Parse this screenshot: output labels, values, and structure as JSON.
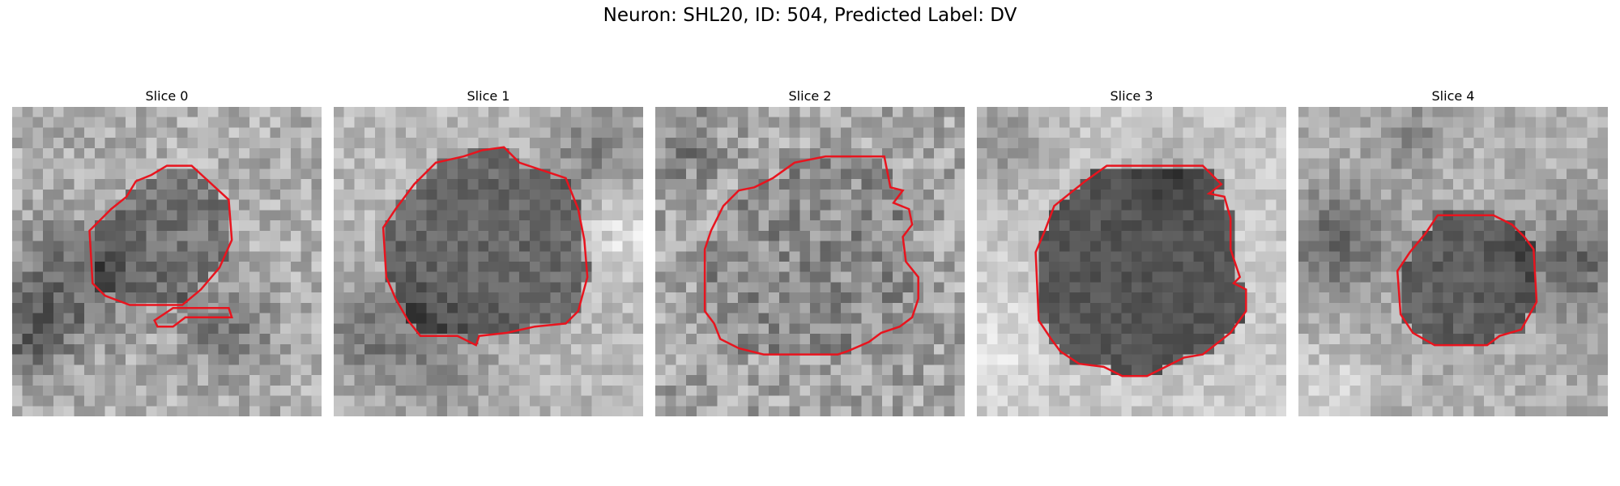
{
  "figure": {
    "title": "Neuron: SHL20, ID: 504, Predicted Label: DV"
  },
  "contour_color": "#e8141e",
  "panels": [
    {
      "title": "Slice 0",
      "tone": "speckled gray with dark patch lower-left",
      "contours": [
        [
          [
            0.5,
            0.19
          ],
          [
            0.58,
            0.19
          ],
          [
            0.7,
            0.3
          ],
          [
            0.71,
            0.43
          ],
          [
            0.67,
            0.52
          ],
          [
            0.61,
            0.59
          ],
          [
            0.55,
            0.64
          ],
          [
            0.38,
            0.64
          ],
          [
            0.3,
            0.61
          ],
          [
            0.26,
            0.57
          ],
          [
            0.25,
            0.4
          ],
          [
            0.32,
            0.33
          ],
          [
            0.37,
            0.29
          ],
          [
            0.4,
            0.24
          ],
          [
            0.45,
            0.22
          ]
        ],
        [
          [
            0.52,
            0.65
          ],
          [
            0.7,
            0.65
          ],
          [
            0.71,
            0.68
          ],
          [
            0.56,
            0.68
          ],
          [
            0.52,
            0.71
          ],
          [
            0.47,
            0.71
          ],
          [
            0.46,
            0.69
          ]
        ]
      ]
    },
    {
      "title": "Slice 1",
      "tone": "large darker soma centered",
      "contours": [
        [
          [
            0.48,
            0.14
          ],
          [
            0.55,
            0.13
          ],
          [
            0.6,
            0.18
          ],
          [
            0.75,
            0.23
          ],
          [
            0.79,
            0.33
          ],
          [
            0.81,
            0.43
          ],
          [
            0.82,
            0.55
          ],
          [
            0.79,
            0.66
          ],
          [
            0.75,
            0.7
          ],
          [
            0.65,
            0.71
          ],
          [
            0.56,
            0.73
          ],
          [
            0.47,
            0.74
          ],
          [
            0.46,
            0.77
          ],
          [
            0.4,
            0.74
          ],
          [
            0.28,
            0.74
          ],
          [
            0.24,
            0.69
          ],
          [
            0.2,
            0.62
          ],
          [
            0.17,
            0.55
          ],
          [
            0.16,
            0.39
          ],
          [
            0.2,
            0.33
          ],
          [
            0.26,
            0.25
          ],
          [
            0.33,
            0.18
          ],
          [
            0.42,
            0.16
          ]
        ]
      ]
    },
    {
      "title": "Slice 2",
      "tone": "noisy textured soma",
      "contours": [
        [
          [
            0.55,
            0.16
          ],
          [
            0.74,
            0.16
          ],
          [
            0.76,
            0.26
          ],
          [
            0.8,
            0.27
          ],
          [
            0.77,
            0.31
          ],
          [
            0.82,
            0.33
          ],
          [
            0.83,
            0.38
          ],
          [
            0.8,
            0.42
          ],
          [
            0.81,
            0.5
          ],
          [
            0.85,
            0.55
          ],
          [
            0.85,
            0.62
          ],
          [
            0.83,
            0.68
          ],
          [
            0.79,
            0.71
          ],
          [
            0.73,
            0.73
          ],
          [
            0.69,
            0.76
          ],
          [
            0.62,
            0.79
          ],
          [
            0.59,
            0.8
          ],
          [
            0.35,
            0.8
          ],
          [
            0.27,
            0.78
          ],
          [
            0.21,
            0.75
          ],
          [
            0.19,
            0.7
          ],
          [
            0.16,
            0.66
          ],
          [
            0.16,
            0.46
          ],
          [
            0.18,
            0.4
          ],
          [
            0.22,
            0.32
          ],
          [
            0.27,
            0.27
          ],
          [
            0.32,
            0.26
          ],
          [
            0.38,
            0.23
          ],
          [
            0.45,
            0.18
          ]
        ]
      ]
    },
    {
      "title": "Slice 3",
      "tone": "smooth dark soma on light background",
      "contours": [
        [
          [
            0.42,
            0.19
          ],
          [
            0.73,
            0.19
          ],
          [
            0.79,
            0.25
          ],
          [
            0.75,
            0.28
          ],
          [
            0.8,
            0.29
          ],
          [
            0.82,
            0.36
          ],
          [
            0.82,
            0.46
          ],
          [
            0.85,
            0.55
          ],
          [
            0.83,
            0.57
          ],
          [
            0.87,
            0.59
          ],
          [
            0.87,
            0.66
          ],
          [
            0.82,
            0.73
          ],
          [
            0.73,
            0.8
          ],
          [
            0.67,
            0.81
          ],
          [
            0.61,
            0.84
          ],
          [
            0.55,
            0.87
          ],
          [
            0.47,
            0.87
          ],
          [
            0.41,
            0.84
          ],
          [
            0.33,
            0.83
          ],
          [
            0.27,
            0.79
          ],
          [
            0.24,
            0.75
          ],
          [
            0.2,
            0.69
          ],
          [
            0.19,
            0.47
          ],
          [
            0.22,
            0.4
          ],
          [
            0.25,
            0.32
          ],
          [
            0.35,
            0.24
          ]
        ]
      ]
    },
    {
      "title": "Slice 4",
      "tone": "small soma in dark band",
      "contours": [
        [
          [
            0.45,
            0.35
          ],
          [
            0.63,
            0.35
          ],
          [
            0.69,
            0.38
          ],
          [
            0.73,
            0.42
          ],
          [
            0.76,
            0.46
          ],
          [
            0.77,
            0.63
          ],
          [
            0.72,
            0.72
          ],
          [
            0.65,
            0.74
          ],
          [
            0.61,
            0.77
          ],
          [
            0.44,
            0.77
          ],
          [
            0.37,
            0.73
          ],
          [
            0.33,
            0.67
          ],
          [
            0.32,
            0.53
          ],
          [
            0.36,
            0.47
          ],
          [
            0.41,
            0.41
          ]
        ]
      ]
    }
  ]
}
